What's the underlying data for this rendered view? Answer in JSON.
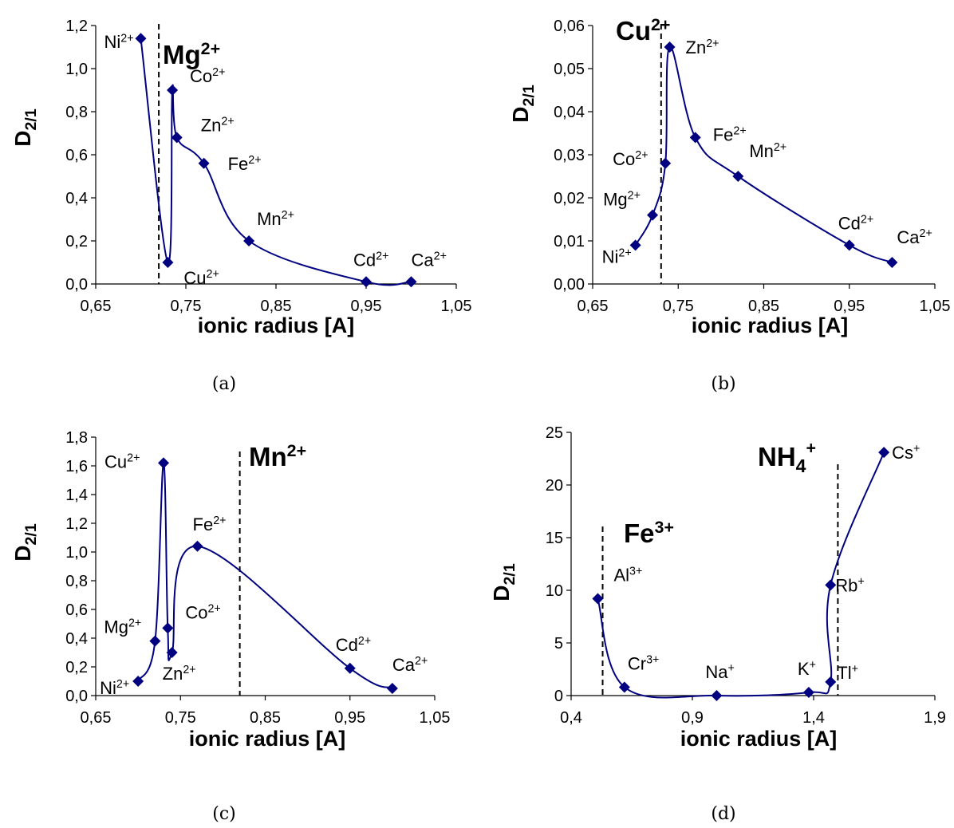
{
  "chart_data": [
    {
      "type": "scatter",
      "caption": "(a)",
      "main_ion": {
        "base": "Mg",
        "sub": "",
        "sup": "2+"
      },
      "ylabel": {
        "base": "D",
        "sub": "2/1"
      },
      "xlabel": "ionic radius [A]",
      "xlim": [
        0.65,
        1.05
      ],
      "xticks": [
        0.65,
        0.75,
        0.85,
        0.95,
        1.05
      ],
      "xtick_labels": [
        "0,65",
        "0,75",
        "0,85",
        "0,95",
        "1,05"
      ],
      "ylim": [
        0,
        1.2
      ],
      "yticks": [
        0,
        0.2,
        0.4,
        0.6,
        0.8,
        1.0,
        1.2
      ],
      "ytick_labels": [
        "0,0",
        "0,2",
        "0,4",
        "0,6",
        "0,8",
        "1,0",
        "1,2"
      ],
      "dashed_x": 0.72,
      "points": [
        {
          "label": "Ni",
          "charge": "2+",
          "x": 0.7,
          "y": 1.14
        },
        {
          "label": "Cu",
          "charge": "2+",
          "x": 0.73,
          "y": 0.1
        },
        {
          "label": "Co",
          "charge": "2+",
          "x": 0.735,
          "y": 0.9
        },
        {
          "label": "Zn",
          "charge": "2+",
          "x": 0.74,
          "y": 0.68
        },
        {
          "label": "Fe",
          "charge": "2+",
          "x": 0.77,
          "y": 0.56
        },
        {
          "label": "Mn",
          "charge": "2+",
          "x": 0.82,
          "y": 0.2
        },
        {
          "label": "Cd",
          "charge": "2+",
          "x": 0.95,
          "y": 0.01
        },
        {
          "label": "Ca",
          "charge": "2+",
          "x": 1.0,
          "y": 0.01
        }
      ]
    },
    {
      "type": "scatter",
      "caption": "(b)",
      "main_ion": {
        "base": "Cu",
        "sub": "",
        "sup": "2+"
      },
      "ylabel": {
        "base": "D",
        "sub": "2/1"
      },
      "xlabel": "ionic radius [A]",
      "xlim": [
        0.65,
        1.05
      ],
      "xticks": [
        0.65,
        0.75,
        0.85,
        0.95,
        1.05
      ],
      "xtick_labels": [
        "0,65",
        "0,75",
        "0,85",
        "0,95",
        "1,05"
      ],
      "ylim": [
        0,
        0.06
      ],
      "yticks": [
        0,
        0.01,
        0.02,
        0.03,
        0.04,
        0.05,
        0.06
      ],
      "ytick_labels": [
        "0,00",
        "0,01",
        "0,02",
        "0,03",
        "0,04",
        "0,05",
        "0,06"
      ],
      "dashed_x": 0.73,
      "points": [
        {
          "label": "Ni",
          "charge": "2+",
          "x": 0.7,
          "y": 0.009
        },
        {
          "label": "Mg",
          "charge": "2+",
          "x": 0.72,
          "y": 0.016
        },
        {
          "label": "Co",
          "charge": "2+",
          "x": 0.735,
          "y": 0.028
        },
        {
          "label": "Zn",
          "charge": "2+",
          "x": 0.74,
          "y": 0.055
        },
        {
          "label": "Fe",
          "charge": "2+",
          "x": 0.77,
          "y": 0.034
        },
        {
          "label": "Mn",
          "charge": "2+",
          "x": 0.82,
          "y": 0.025
        },
        {
          "label": "Cd",
          "charge": "2+",
          "x": 0.95,
          "y": 0.009
        },
        {
          "label": "Ca",
          "charge": "2+",
          "x": 1.0,
          "y": 0.005
        }
      ]
    },
    {
      "type": "scatter",
      "caption": "(c)",
      "main_ion": {
        "base": "Mn",
        "sub": "",
        "sup": "2+"
      },
      "ylabel": {
        "base": "D",
        "sub": "2/1"
      },
      "xlabel": "ionic radius [A]",
      "xlim": [
        0.65,
        1.05
      ],
      "xticks": [
        0.65,
        0.75,
        0.85,
        0.95,
        1.05
      ],
      "xtick_labels": [
        "0,65",
        "0,75",
        "0,85",
        "0,95",
        "1,05"
      ],
      "ylim": [
        0,
        1.8
      ],
      "yticks": [
        0,
        0.2,
        0.4,
        0.6,
        0.8,
        1.0,
        1.2,
        1.4,
        1.6,
        1.8
      ],
      "ytick_labels": [
        "0,0",
        "0,2",
        "0,4",
        "0,6",
        "0,8",
        "1,0",
        "1,2",
        "1,4",
        "1,6",
        "1,8"
      ],
      "dashed_x": 0.82,
      "points": [
        {
          "label": "Ni",
          "charge": "2+",
          "x": 0.7,
          "y": 0.1
        },
        {
          "label": "Mg",
          "charge": "2+",
          "x": 0.72,
          "y": 0.38
        },
        {
          "label": "Cu",
          "charge": "2+",
          "x": 0.73,
          "y": 1.62
        },
        {
          "label": "Co",
          "charge": "2+",
          "x": 0.735,
          "y": 0.47
        },
        {
          "label": "Zn",
          "charge": "2+",
          "x": 0.74,
          "y": 0.3
        },
        {
          "label": "Fe",
          "charge": "2+",
          "x": 0.77,
          "y": 1.04
        },
        {
          "label": "Cd",
          "charge": "2+",
          "x": 0.95,
          "y": 0.19
        },
        {
          "label": "Ca",
          "charge": "2+",
          "x": 1.0,
          "y": 0.05
        }
      ]
    },
    {
      "type": "scatter",
      "caption": "(d)",
      "main_ion": {
        "base": "NH",
        "sub": "4",
        "sup": "+"
      },
      "second_ion": {
        "base": "Fe",
        "sub": "",
        "sup": "3+"
      },
      "ylabel": {
        "base": "D",
        "sub": "2/1"
      },
      "xlabel": "ionic radius [A]",
      "xlim": [
        0.4,
        1.9
      ],
      "xticks": [
        0.4,
        0.9,
        1.4,
        1.9
      ],
      "xtick_labels": [
        "0,4",
        "0,9",
        "1,4",
        "1,9"
      ],
      "ylim": [
        0,
        25
      ],
      "yticks": [
        0,
        5,
        10,
        15,
        20,
        25
      ],
      "ytick_labels": [
        "0",
        "5",
        "10",
        "15",
        "20",
        "25"
      ],
      "dashed_x": [
        0.53,
        1.5
      ],
      "points": [
        {
          "label": "Al",
          "charge": "3+",
          "x": 0.51,
          "y": 9.2
        },
        {
          "label": "Cr",
          "charge": "3+",
          "x": 0.62,
          "y": 0.8
        },
        {
          "label": "Na",
          "charge": "+",
          "x": 1.0,
          "y": 0.0
        },
        {
          "label": "K",
          "charge": "+",
          "x": 1.38,
          "y": 0.3
        },
        {
          "label": "Tl",
          "charge": "+",
          "x": 1.47,
          "y": 1.3
        },
        {
          "label": "Rb",
          "charge": "+",
          "x": 1.47,
          "y": 10.5
        },
        {
          "label": "Cs",
          "charge": "+",
          "x": 1.69,
          "y": 23.1
        }
      ]
    }
  ]
}
